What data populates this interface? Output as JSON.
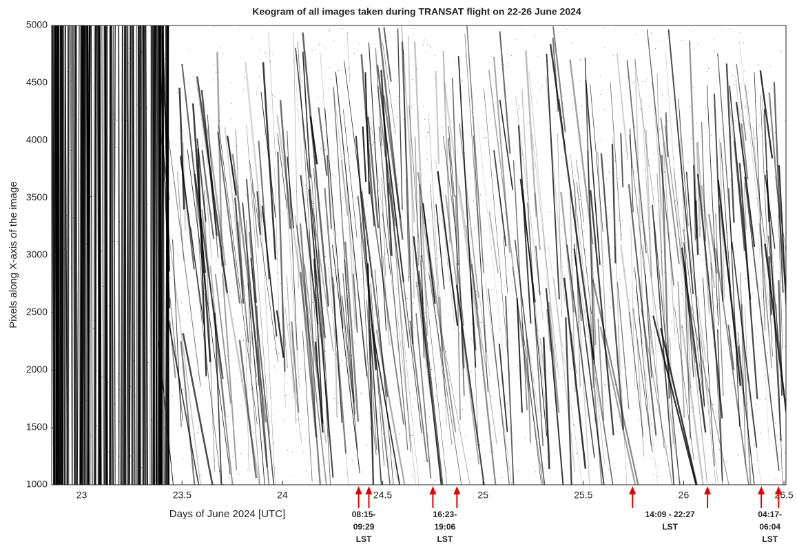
{
  "chart_data": {
    "type": "keogram",
    "title": "Keogram of all images taken during TRANSAT flight on 22-26 June 2024",
    "xlabel": "Days of June 2024 [UTC]",
    "ylabel": "Pixels along X-axis of the image",
    "xlim": [
      22.85,
      26.51
    ],
    "ylim": [
      1000,
      5000
    ],
    "xticks": [
      23,
      23.5,
      24,
      24.5,
      25,
      25.5,
      26,
      26.5
    ],
    "yticks": [
      1000,
      1500,
      2000,
      2500,
      3000,
      3500,
      4000,
      4500,
      5000
    ],
    "arrow_color": "#e00000",
    "annotations": [
      {
        "x": [
          24.38,
          24.431
        ],
        "lines": [
          "08:15-",
          "09:29",
          "LST"
        ]
      },
      {
        "x": [
          24.75,
          24.87
        ],
        "lines": [
          "16:23-",
          "19:06",
          "LST"
        ]
      },
      {
        "x": [
          25.745,
          26.119
        ],
        "lines": [
          "14:09 - 22:27",
          "LST"
        ]
      },
      {
        "x": [
          26.387,
          26.473
        ],
        "lines": [
          "04:17-",
          "06:04",
          "LST"
        ]
      }
    ]
  }
}
